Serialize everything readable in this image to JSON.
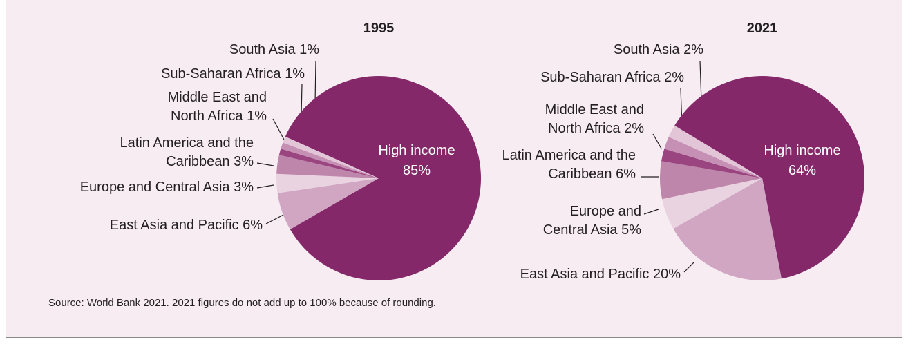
{
  "chart_data": [
    {
      "type": "pie",
      "title": "1995",
      "categories": [
        "High income",
        "East Asia and Pacific",
        "Europe and Central Asia",
        "Latin America and the Caribbean",
        "Middle East and North Africa",
        "Sub-Saharan Africa",
        "South Asia"
      ],
      "values": [
        85,
        6,
        3,
        3,
        1,
        1,
        1
      ],
      "value_labels": [
        "85%",
        "6%",
        "3%",
        "3%",
        "1%",
        "1%",
        "1%"
      ],
      "colors": [
        "#842869",
        "#d0a6c3",
        "#ead3e1",
        "#bf86ac",
        "#9a4580",
        "#c690b5",
        "#e3c5d8"
      ]
    },
    {
      "type": "pie",
      "title": "2021",
      "categories": [
        "High income",
        "East Asia and Pacific",
        "Europe and Central Asia",
        "Latin America and the Caribbean",
        "Middle East and North Africa",
        "Sub-Saharan Africa",
        "South Asia"
      ],
      "values": [
        64,
        20,
        5,
        6,
        2,
        2,
        2
      ],
      "value_labels": [
        "64%",
        "20%",
        "5%",
        "6%",
        "2%",
        "2%",
        "2%"
      ],
      "colors": [
        "#842869",
        "#d0a6c3",
        "#ead3e1",
        "#bf86ac",
        "#9a4580",
        "#c690b5",
        "#e3c5d8"
      ]
    }
  ],
  "source": "Source: World Bank 2021. 2021 figures do not add up to 100% because of rounding."
}
